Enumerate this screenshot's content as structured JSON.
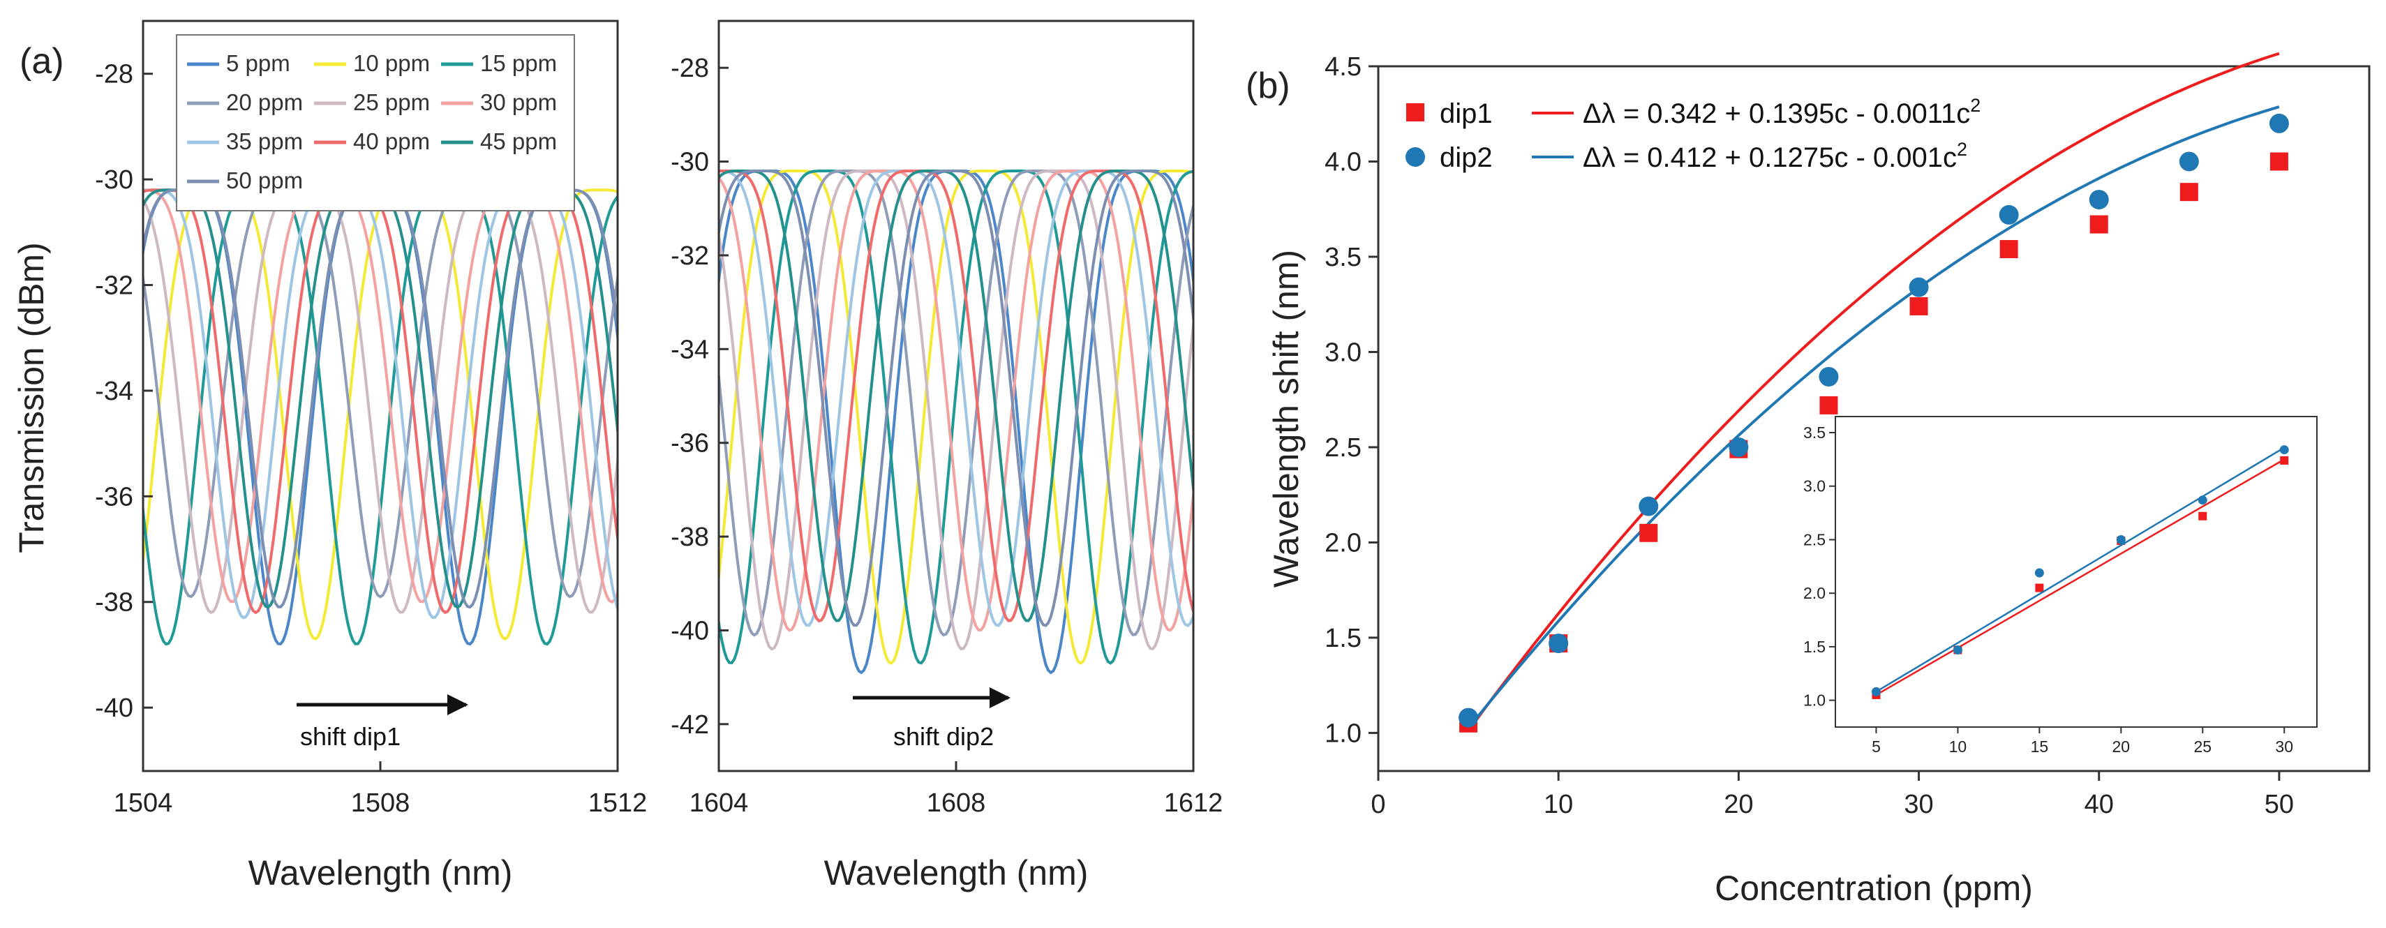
{
  "colors": {
    "5 ppm": "#4a86c8",
    "10 ppm": "#f4ea35",
    "15 ppm": "#1f9a96",
    "20 ppm": "#8e9cb8",
    "25 ppm": "#cdb9c4",
    "30 ppm": "#f3a1a1",
    "35 ppm": "#9ec6e4",
    "40 ppm": "#ef6a6a",
    "45 ppm": "#23908c",
    "50 ppm": "#7c8fb2",
    "dip1": "#ee1c1c",
    "dip2": "#1f77b4"
  },
  "chart_data": [
    {
      "type": "line",
      "panel_label": "(a)",
      "title": "",
      "xlabel": "Wavelength (nm)",
      "ylabel": "Transmission (dBm)",
      "xlim": [
        1504,
        1512
      ],
      "ylim": [
        -41.2,
        -27
      ],
      "x_ticks": [
        "1504",
        "1508",
        "1512"
      ],
      "y_ticks": [
        "-28",
        "-30",
        "-32",
        "-34",
        "-36",
        "-38",
        "-40"
      ],
      "legend": [
        "5 ppm",
        "10 ppm",
        "15 ppm",
        "20 ppm",
        "25 ppm",
        "30 ppm",
        "35 ppm",
        "40 ppm",
        "45 ppm",
        "50 ppm"
      ],
      "annotation": "shift dip1",
      "series": [
        {
          "name": "5 ppm",
          "dip_center": 1506.3,
          "dip_min": -38.8
        },
        {
          "name": "10 ppm",
          "dip_center": 1506.9,
          "dip_min": -38.7
        },
        {
          "name": "15 ppm",
          "dip_center": 1507.6,
          "dip_min": -38.8
        },
        {
          "name": "20 ppm",
          "dip_center": 1508.0,
          "dip_min": -37.9
        },
        {
          "name": "25 ppm",
          "dip_center": 1508.35,
          "dip_min": -38.2
        },
        {
          "name": "30 ppm",
          "dip_center": 1508.7,
          "dip_min": -38.0
        },
        {
          "name": "35 ppm",
          "dip_center": 1508.9,
          "dip_min": -38.3
        },
        {
          "name": "40 ppm",
          "dip_center": 1509.1,
          "dip_min": -38.2
        },
        {
          "name": "45 ppm",
          "dip_center": 1509.3,
          "dip_min": -38.1
        },
        {
          "name": "50 ppm",
          "dip_center": 1509.5,
          "dip_min": -38.1
        }
      ]
    },
    {
      "type": "line",
      "panel_label": "",
      "title": "",
      "xlabel": "Wavelength (nm)",
      "ylabel": "",
      "xlim": [
        1604,
        1612
      ],
      "ylim": [
        -43,
        -27
      ],
      "x_ticks": [
        "1604",
        "1608",
        "1612"
      ],
      "y_ticks": [
        "-28",
        "-30",
        "-32",
        "-34",
        "-36",
        "-38",
        "-40",
        "-42"
      ],
      "annotation": "shift dip2",
      "series": [
        {
          "name": "5 ppm",
          "dip_center": 1606.4,
          "dip_min": -40.9
        },
        {
          "name": "10 ppm",
          "dip_center": 1606.9,
          "dip_min": -40.7
        },
        {
          "name": "15 ppm",
          "dip_center": 1607.4,
          "dip_min": -40.7
        },
        {
          "name": "20 ppm",
          "dip_center": 1607.8,
          "dip_min": -40.1
        },
        {
          "name": "25 ppm",
          "dip_center": 1608.1,
          "dip_min": -40.4
        },
        {
          "name": "30 ppm",
          "dip_center": 1608.4,
          "dip_min": -40.0
        },
        {
          "name": "35 ppm",
          "dip_center": 1608.7,
          "dip_min": -39.9
        },
        {
          "name": "40 ppm",
          "dip_center": 1608.9,
          "dip_min": -39.8
        },
        {
          "name": "45 ppm",
          "dip_center": 1609.2,
          "dip_min": -39.8
        },
        {
          "name": "50 ppm",
          "dip_center": 1609.5,
          "dip_min": -39.9
        }
      ]
    },
    {
      "type": "scatter",
      "panel_label": "(b)",
      "title": "",
      "xlabel": "Concentration (ppm)",
      "ylabel": "Wavelength shift (nm)",
      "xlim": [
        0,
        55
      ],
      "ylim": [
        0.8,
        4.5
      ],
      "x_ticks": [
        "0",
        "10",
        "20",
        "30",
        "40",
        "50"
      ],
      "y_ticks": [
        "1.0",
        "1.5",
        "2.0",
        "2.5",
        "3.0",
        "3.5",
        "4.0",
        "4.5"
      ],
      "legend_position": "top-left",
      "x": [
        5,
        10,
        15,
        20,
        25,
        30,
        35,
        40,
        45,
        50
      ],
      "series": [
        {
          "name": "dip1",
          "marker": "square",
          "values": [
            1.05,
            1.47,
            2.05,
            2.49,
            2.72,
            3.24,
            3.54,
            3.67,
            3.84,
            4.0
          ],
          "fit_label": "Δλ = 0.342 + 0.1395c - 0.0011c",
          "fit_exp": "2",
          "fit": {
            "a": 0.342,
            "b": 0.1395,
            "c": -0.0011
          }
        },
        {
          "name": "dip2",
          "marker": "circle",
          "values": [
            1.08,
            1.47,
            2.19,
            2.5,
            2.87,
            3.34,
            3.72,
            3.8,
            4.0,
            4.2
          ],
          "fit_label": "Δλ = 0.412 + 0.1275c - 0.001c",
          "fit_exp": "2",
          "fit": {
            "a": 0.412,
            "b": 0.1275,
            "c": -0.001
          }
        }
      ]
    },
    {
      "type": "scatter",
      "panel_label": "",
      "title": "",
      "xlim": [
        2.5,
        32
      ],
      "ylim": [
        0.75,
        3.65
      ],
      "x_ticks": [
        "5",
        "10",
        "15",
        "20",
        "25",
        "30"
      ],
      "y_ticks": [
        "1.0",
        "1.5",
        "2.0",
        "2.5",
        "3.0",
        "3.5"
      ],
      "x": [
        5,
        10,
        15,
        20,
        25,
        30
      ],
      "series": [
        {
          "name": "dip1",
          "values": [
            1.05,
            1.47,
            2.05,
            2.49,
            2.72,
            3.24
          ],
          "linear_fit": [
            1.05,
            3.25
          ]
        },
        {
          "name": "dip2",
          "values": [
            1.08,
            1.47,
            2.19,
            2.5,
            2.87,
            3.34
          ],
          "linear_fit": [
            1.08,
            3.36
          ]
        }
      ]
    }
  ]
}
